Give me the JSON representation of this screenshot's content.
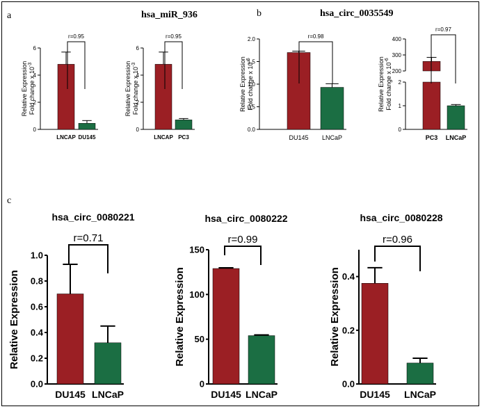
{
  "figure": {
    "panel_labels": [
      "a",
      "b",
      "c"
    ],
    "group_titles": {
      "a": "hsa_miR_936",
      "b": "hsa_circ_0035549"
    }
  },
  "colors": {
    "red": "#9b1f24",
    "green": "#1b6e43",
    "frame": "#000000"
  },
  "chart_data": [
    {
      "type": "bar",
      "title": "",
      "ylabel_lines": [
        "Relative Expression",
        "Fold change x 10"
      ],
      "ylabel_sup": "-3",
      "categories": [
        "LNCAP",
        "DU145"
      ],
      "values": [
        4.8,
        0.45
      ],
      "errors": [
        0.9,
        0.2
      ],
      "colors": [
        "#9b1f24",
        "#1b6e43"
      ],
      "ylim": [
        0,
        6
      ],
      "yticks": [
        "0",
        "2",
        "4",
        "6"
      ],
      "annotation": "r=0.95"
    },
    {
      "type": "bar",
      "title": "",
      "ylabel_lines": [
        "Relative Expression",
        "Fold change x 10"
      ],
      "ylabel_sup": "-3",
      "categories": [
        "LNCAP",
        "PC3"
      ],
      "values": [
        4.8,
        0.7
      ],
      "errors": [
        0.9,
        0.1
      ],
      "colors": [
        "#9b1f24",
        "#1b6e43"
      ],
      "ylim": [
        0,
        6
      ],
      "yticks": [
        "0",
        "2",
        "4",
        "6"
      ],
      "annotation": "r=0.95"
    },
    {
      "type": "bar",
      "title": "",
      "ylabel_lines": [
        "Relative Expression",
        "Fold change x 10"
      ],
      "ylabel_sup": "-6",
      "categories": [
        "DU145",
        "LNCaP"
      ],
      "values": [
        1.7,
        0.93
      ],
      "errors": [
        0.03,
        0.08
      ],
      "colors": [
        "#9b1f24",
        "#1b6e43"
      ],
      "ylim": [
        0,
        2.0
      ],
      "yticks": [
        "0.0",
        "0.5",
        "1.0",
        "1.5",
        "2.0"
      ],
      "annotation": "r=0.98"
    },
    {
      "type": "bar",
      "title": "",
      "ylabel_lines": [
        "Relative Expression",
        "Fold change x 10"
      ],
      "ylabel_sup": "-6",
      "categories": [
        "PC3",
        "LNCaP"
      ],
      "values": [
        260,
        1.0
      ],
      "errors": [
        25,
        0.05
      ],
      "colors": [
        "#9b1f24",
        "#1b6e43"
      ],
      "axis_break": {
        "lower": [
          0,
          2
        ],
        "upper": [
          200,
          400
        ]
      },
      "yticks": [
        "0",
        "1",
        "2",
        "200",
        "300",
        "400"
      ],
      "annotation": "r=0.97"
    },
    {
      "type": "bar",
      "title": "hsa_circ_0080221",
      "ylabel": "Relative Expression",
      "categories": [
        "DU145",
        "LNCaP"
      ],
      "values": [
        0.7,
        0.32
      ],
      "errors": [
        0.23,
        0.13
      ],
      "colors": [
        "#9b1f24",
        "#1b6e43"
      ],
      "ylim": [
        0,
        1.0
      ],
      "yticks": [
        "0.0",
        "0.2",
        "0.4",
        "0.6",
        "0.8",
        "1.0"
      ],
      "annotation": "r=0.71"
    },
    {
      "type": "bar",
      "title": "hsa_circ_0080222",
      "ylabel": "Relative Expression",
      "categories": [
        "DU145",
        "LNCaP"
      ],
      "values": [
        129,
        54
      ],
      "errors": [
        0.8,
        0.8
      ],
      "colors": [
        "#9b1f24",
        "#1b6e43"
      ],
      "ylim": [
        0,
        150
      ],
      "yticks": [
        "0",
        "50",
        "100",
        "150"
      ],
      "annotation": "r=0.99"
    },
    {
      "type": "bar",
      "title": "hsa_circ_0080228",
      "ylabel": "Relative Expression",
      "categories": [
        "DU145",
        "LNCaP"
      ],
      "values": [
        0.375,
        0.078
      ],
      "errors": [
        0.058,
        0.018
      ],
      "colors": [
        "#9b1f24",
        "#1b6e43"
      ],
      "ylim": [
        0,
        0.5
      ],
      "yticks": [
        "0.0",
        "0.2",
        "0.4"
      ],
      "annotation": "r=0.96"
    }
  ]
}
